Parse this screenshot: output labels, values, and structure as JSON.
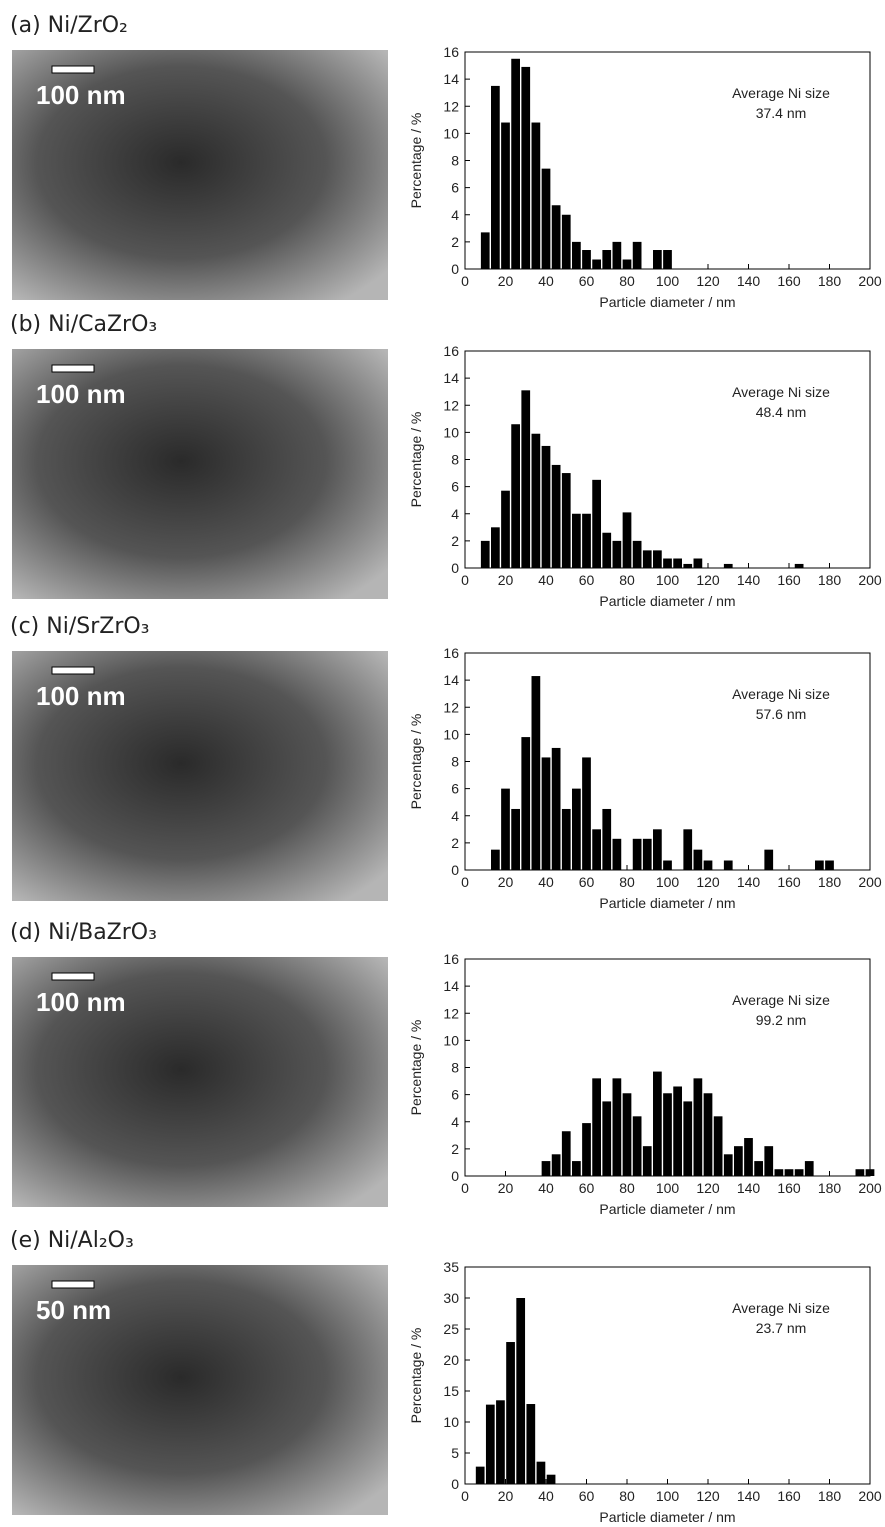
{
  "chart_data": [
    {
      "type": "histogram",
      "title": "(a) Ni/ZrO₂",
      "scale_bar": "100 nm",
      "annotation": [
        "Average Ni size",
        "37.4 nm"
      ],
      "xlabel": "Particle diameter / nm",
      "ylabel": "Percentage / %",
      "color": "#000000",
      "xlim": [
        0,
        200
      ],
      "xticks": [
        0,
        20,
        40,
        60,
        80,
        100,
        120,
        140,
        160,
        180,
        200
      ],
      "ylim": [
        0,
        16
      ],
      "yticks": [
        0,
        2,
        4,
        6,
        8,
        10,
        12,
        14,
        16
      ],
      "bins": [
        7.5,
        12.5,
        17.5,
        22.5,
        27.5,
        32.5,
        37.5,
        42.5,
        47.5,
        52.5,
        57.5,
        62.5,
        67.5,
        72.5,
        77.5,
        82.5,
        87.5,
        92.5,
        97.5,
        102.5
      ],
      "values": [
        2.7,
        13.5,
        10.8,
        15.5,
        14.9,
        10.8,
        7.4,
        4.7,
        4.0,
        2.0,
        1.4,
        0.7,
        1.4,
        2.0,
        0.7,
        2.0,
        0,
        1.4,
        1.4
      ]
    },
    {
      "type": "histogram",
      "title": "(b) Ni/CaZrO₃",
      "scale_bar": "100 nm",
      "annotation": [
        "Average Ni size",
        "48.4 nm"
      ],
      "xlabel": "Particle diameter / nm",
      "ylabel": "Percentage / %",
      "color": "#000000",
      "xlim": [
        0,
        200
      ],
      "xticks": [
        0,
        20,
        40,
        60,
        80,
        100,
        120,
        140,
        160,
        180,
        200
      ],
      "ylim": [
        0,
        16
      ],
      "yticks": [
        0,
        2,
        4,
        6,
        8,
        10,
        12,
        14,
        16
      ],
      "bins": [
        7.5,
        12.5,
        17.5,
        22.5,
        27.5,
        32.5,
        37.5,
        42.5,
        47.5,
        52.5,
        57.5,
        62.5,
        67.5,
        72.5,
        77.5,
        82.5,
        87.5,
        92.5,
        97.5,
        102.5,
        107.5,
        112.5,
        117.5,
        122.5,
        127.5,
        132.5,
        137.5,
        142.5,
        147.5,
        152.5,
        157.5,
        162.5,
        167.5
      ],
      "values": [
        2.0,
        3.0,
        5.7,
        10.6,
        13.1,
        9.9,
        9.0,
        7.6,
        7.0,
        4.0,
        4.0,
        6.5,
        2.6,
        2.0,
        4.1,
        2.0,
        1.3,
        1.3,
        0.7,
        0.7,
        0.3,
        0.7,
        0,
        0,
        0.3,
        0,
        0,
        0,
        0,
        0,
        0,
        0.3
      ]
    },
    {
      "type": "histogram",
      "title": "(c) Ni/SrZrO₃",
      "scale_bar": "100 nm",
      "annotation": [
        "Average Ni size",
        "57.6 nm"
      ],
      "xlabel": "Particle diameter / nm",
      "ylabel": "Percentage / %",
      "color": "#000000",
      "xlim": [
        0,
        200
      ],
      "xticks": [
        0,
        20,
        40,
        60,
        80,
        100,
        120,
        140,
        160,
        180,
        200
      ],
      "ylim": [
        0,
        16
      ],
      "yticks": [
        0,
        2,
        4,
        6,
        8,
        10,
        12,
        14,
        16
      ],
      "bins": [
        12.5,
        17.5,
        22.5,
        27.5,
        32.5,
        37.5,
        42.5,
        47.5,
        52.5,
        57.5,
        62.5,
        67.5,
        72.5,
        77.5,
        82.5,
        87.5,
        92.5,
        97.5,
        102.5,
        107.5,
        112.5,
        117.5,
        122.5,
        127.5,
        132.5,
        137.5,
        142.5,
        147.5,
        152.5,
        157.5,
        162.5,
        167.5,
        172.5,
        177.5,
        182.5
      ],
      "values": [
        1.5,
        6.0,
        4.5,
        9.8,
        14.3,
        8.3,
        9.0,
        4.5,
        6.0,
        8.3,
        3.0,
        4.5,
        2.3,
        0,
        2.3,
        2.3,
        3.0,
        0.7,
        0,
        3.0,
        1.5,
        0.7,
        0,
        0.7,
        0,
        0,
        0,
        1.5,
        0,
        0,
        0,
        0,
        0.7,
        0.7
      ]
    },
    {
      "type": "histogram",
      "title": "(d) Ni/BaZrO₃",
      "scale_bar": "100 nm",
      "annotation": [
        "Average Ni size",
        "99.2 nm"
      ],
      "xlabel": "Particle diameter / nm",
      "ylabel": "Percentage / %",
      "color": "#000000",
      "xlim": [
        0,
        200
      ],
      "xticks": [
        0,
        20,
        40,
        60,
        80,
        100,
        120,
        140,
        160,
        180,
        200
      ],
      "ylim": [
        0,
        16
      ],
      "yticks": [
        0,
        2,
        4,
        6,
        8,
        10,
        12,
        14,
        16
      ],
      "bins": [
        37.5,
        42.5,
        47.5,
        52.5,
        57.5,
        62.5,
        67.5,
        72.5,
        77.5,
        82.5,
        87.5,
        92.5,
        97.5,
        102.5,
        107.5,
        112.5,
        117.5,
        122.5,
        127.5,
        132.5,
        137.5,
        142.5,
        147.5,
        152.5,
        157.5,
        162.5,
        167.5,
        172.5,
        177.5,
        182.5,
        187.5,
        192.5,
        197.5,
        202.5
      ],
      "values": [
        1.1,
        1.6,
        3.3,
        1.1,
        3.9,
        7.2,
        5.5,
        7.2,
        6.1,
        4.4,
        2.2,
        7.7,
        6.1,
        6.6,
        5.5,
        7.2,
        6.1,
        4.4,
        1.6,
        2.2,
        2.8,
        1.1,
        2.2,
        0.5,
        0.5,
        0.5,
        1.1,
        0,
        0,
        0,
        0,
        0.5,
        0.5
      ]
    },
    {
      "type": "histogram",
      "title": "(e) Ni/Al₂O₃",
      "scale_bar": "50 nm",
      "annotation": [
        "Average Ni size",
        "23.7 nm"
      ],
      "xlabel": "Particle diameter / nm",
      "ylabel": "Percentage / %",
      "color": "#000000",
      "xlim": [
        0,
        200
      ],
      "xticks": [
        0,
        20,
        40,
        60,
        80,
        100,
        120,
        140,
        160,
        180,
        200
      ],
      "ylim": [
        0,
        35
      ],
      "yticks": [
        0,
        5,
        10,
        15,
        20,
        25,
        30,
        35
      ],
      "bins": [
        5,
        10,
        15,
        20,
        25,
        30,
        35,
        40,
        45
      ],
      "values": [
        2.8,
        12.8,
        13.5,
        22.9,
        30,
        12.9,
        3.6,
        1.5
      ]
    }
  ]
}
